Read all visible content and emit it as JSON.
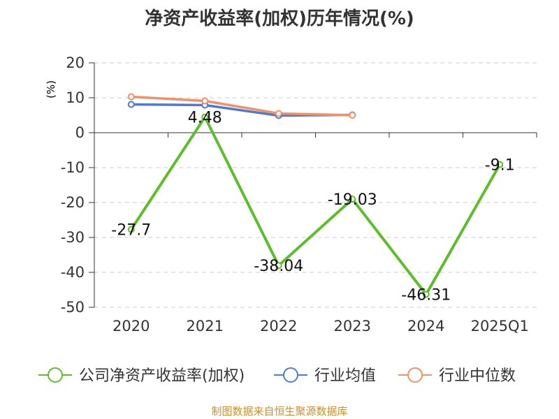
{
  "title": "净资产收益率(加权)历年情况(%)",
  "source": "制图数据来自恒生聚源数据库",
  "colors": {
    "company": "#5cbf2a",
    "industry_avg": "#4e79d8",
    "industry_median": "#f39063",
    "unit_label": "#cc0000",
    "axis": "#333333",
    "grid": "#cccccc"
  },
  "chart_data": {
    "type": "line",
    "title": "净资产收益率(加权)历年情况(%)",
    "ylabel": "(%)",
    "xlabel": "",
    "categories": [
      "2020",
      "2021",
      "2022",
      "2023",
      "2024",
      "2025Q1"
    ],
    "ylim": [
      -50,
      20
    ],
    "yticks": [
      -50,
      -40,
      -30,
      -20,
      -10,
      0,
      10,
      20
    ],
    "grid": true,
    "legend_position": "bottom",
    "series": [
      {
        "name": "公司净资产收益率(加权)",
        "color": "#5cbf2a",
        "values": [
          -27.7,
          4.48,
          -38.04,
          -19.03,
          -46.31,
          -9.1
        ],
        "labels": [
          "-27.7",
          "4.48",
          "-38.04",
          "-19.03",
          "-46.31",
          "-9.1"
        ]
      },
      {
        "name": "行业均值",
        "color": "#4e79d8",
        "values": [
          8.1,
          7.9,
          4.9,
          5.1,
          null,
          null
        ]
      },
      {
        "name": "行业中位数",
        "color": "#f39063",
        "values": [
          10.3,
          9.1,
          5.5,
          5.0,
          null,
          null
        ]
      }
    ]
  }
}
